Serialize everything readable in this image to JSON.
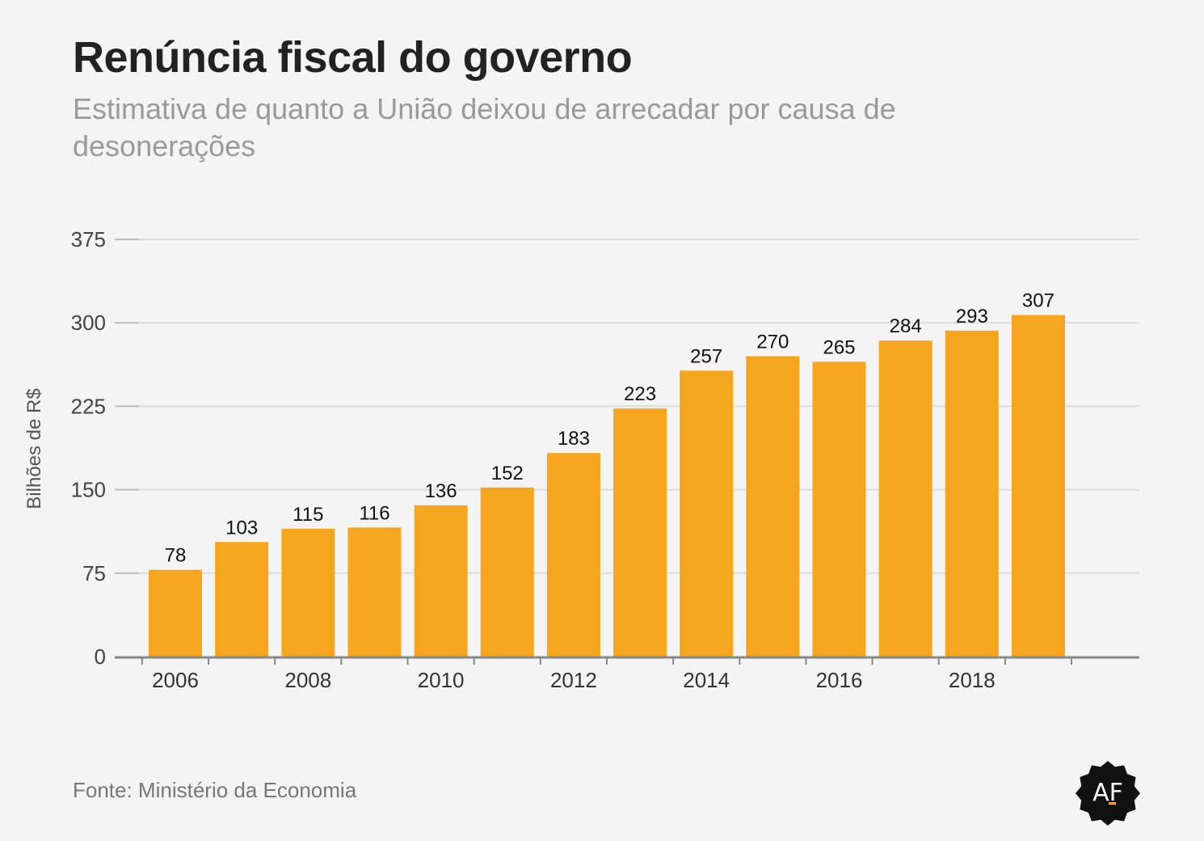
{
  "header": {
    "title": "Renúncia fiscal do governo",
    "subtitle": "Estimativa de quanto a União deixou de arrecadar por causa de desonerações"
  },
  "footer": {
    "source": "Fonte: Ministério da Economia",
    "logo_text": "AF"
  },
  "colors": {
    "bar": "#f5a61e",
    "grid": "#dddddd",
    "axis": "#888888",
    "background": "#f4f4f4"
  },
  "chart_data": {
    "type": "bar",
    "ylabel": "Bilhões de R$",
    "xlabel": "",
    "ylim": [
      0,
      375
    ],
    "yticks": [
      0,
      75,
      150,
      225,
      300,
      375
    ],
    "xticks": [
      "2006",
      "2008",
      "2010",
      "2012",
      "2014",
      "2016",
      "2018"
    ],
    "categories": [
      "2006",
      "2007",
      "2008",
      "2009",
      "2010",
      "2011",
      "2012",
      "2013",
      "2014",
      "2015",
      "2016",
      "2017",
      "2018",
      "2019"
    ],
    "values": [
      78,
      103,
      115,
      116,
      136,
      152,
      183,
      223,
      257,
      270,
      265,
      284,
      293,
      307
    ],
    "grid": true
  }
}
